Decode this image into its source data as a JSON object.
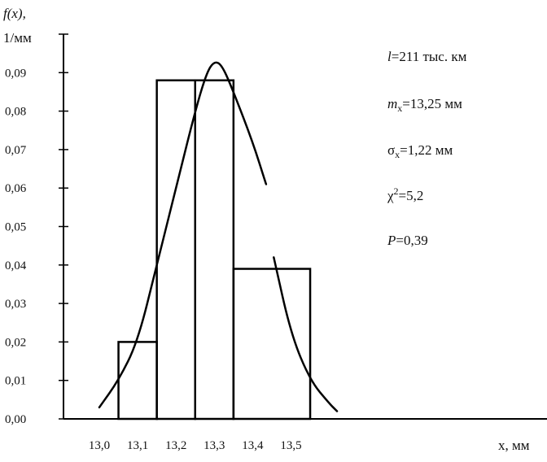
{
  "chart_data": {
    "type": "bar",
    "ylabel": "f(x),",
    "ylabel_unit": "1/мм",
    "xlabel": "x, мм",
    "x_ticks": [
      "13,0",
      "13,1",
      "13,2",
      "13,3",
      "13,4",
      "13,5"
    ],
    "y_ticks": [
      "0,00",
      "0,01",
      "0,02",
      "0,03",
      "0,04",
      "0,05",
      "0,06",
      "0,07",
      "0,08",
      "0,09"
    ],
    "xlim": [
      12.975,
      13.6
    ],
    "ylim": [
      0,
      0.1
    ],
    "grid": false,
    "histogram": [
      {
        "x0": 13.05,
        "x1": 13.15,
        "value": 0.02
      },
      {
        "x0": 13.15,
        "x1": 13.25,
        "value": 0.088
      },
      {
        "x0": 13.25,
        "x1": 13.35,
        "value": 0.088
      },
      {
        "x0": 13.35,
        "x1": 13.55,
        "value": 0.039
      }
    ],
    "density_curve": {
      "segments": [
        {
          "x": [
            13.0,
            13.05,
            13.1,
            13.15,
            13.2,
            13.25,
            13.28,
            13.3,
            13.32,
            13.35,
            13.4,
            13.435
          ],
          "y": [
            0.003,
            0.01,
            0.02,
            0.04,
            0.06,
            0.08,
            0.09,
            0.093,
            0.092,
            0.085,
            0.072,
            0.061
          ]
        },
        {
          "x": [
            13.455,
            13.5,
            13.55,
            13.6,
            13.62
          ],
          "y": [
            0.042,
            0.022,
            0.01,
            0.004,
            0.002
          ]
        }
      ]
    },
    "annotations": {
      "l": "l=211 тыс. км",
      "mx": "mx=13,25 мм",
      "sx": "σx=1,22 мм",
      "chi2": "χ2=5,2",
      "p": "P=0,39"
    }
  }
}
